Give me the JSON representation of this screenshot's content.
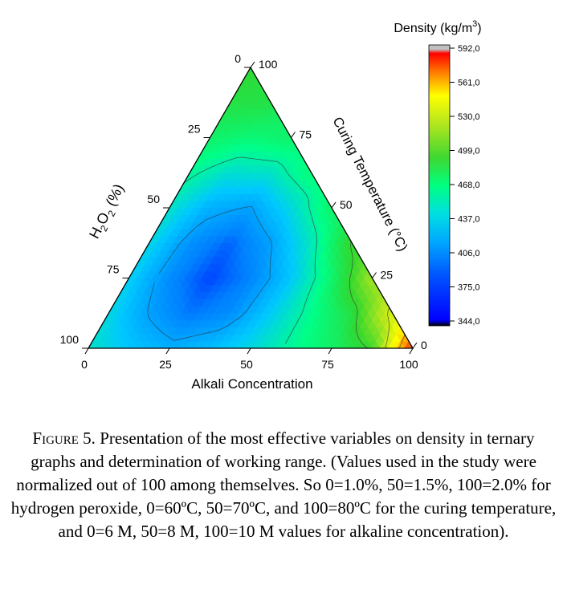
{
  "chart_data": {
    "type": "heatmap",
    "subtype": "ternary-contour",
    "axes": {
      "bottom": {
        "label": "Alkali Concentration",
        "ticks": [
          "0",
          "25",
          "50",
          "75",
          "100"
        ]
      },
      "left": {
        "label_main": "H",
        "label_sub1": "2",
        "label_mid": "O",
        "label_sub2": "2",
        "label_tail": " (%)",
        "ticks": [
          "0",
          "25",
          "50",
          "75",
          "100"
        ]
      },
      "right": {
        "label": "Curing Temperature (°C)",
        "ticks": [
          "0",
          "25",
          "50",
          "75",
          "100"
        ]
      }
    },
    "colorbar": {
      "title": "Density (kg/m",
      "title_sup": "3",
      "title_tail": ")",
      "range": [
        344.0,
        592.0
      ],
      "ticks": [
        "344,0",
        "375,0",
        "406,0",
        "437,0",
        "468,0",
        "499,0",
        "530,0",
        "561,0",
        "592,0"
      ],
      "colors": [
        "#000000",
        "#0000ff",
        "#0080ff",
        "#00c8ff",
        "#00ff88",
        "#30d830",
        "#b4e61e",
        "#ffff00",
        "#ff8000",
        "#ff0000",
        "#c0c0c0"
      ]
    },
    "density_grid": {
      "note_levels": "rows indexed by Alkali Concentration 0..100 step 12.5, cols by Curing Temperature 0..100 step 12.5; value = density kg/m3",
      "step": 12.5,
      "values": [
        [
          430,
          425,
          422,
          425,
          430,
          440,
          452,
          462,
          468
        ],
        [
          418,
          405,
          398,
          400,
          410,
          428,
          448,
          462,
          null
        ],
        [
          410,
          392,
          382,
          388,
          405,
          430,
          452,
          null,
          null
        ],
        [
          415,
          398,
          395,
          405,
          425,
          448,
          null,
          null,
          null
        ],
        [
          425,
          420,
          418,
          432,
          452,
          null,
          null,
          null,
          null
        ],
        [
          440,
          442,
          450,
          470,
          null,
          null,
          null,
          null,
          null
        ],
        [
          452,
          462,
          490,
          null,
          null,
          null,
          null,
          null,
          null
        ],
        [
          470,
          505,
          null,
          null,
          null,
          null,
          null,
          null,
          null
        ],
        [
          560,
          null,
          null,
          null,
          null,
          null,
          null,
          null,
          null
        ]
      ]
    }
  },
  "caption": {
    "label": "Figure 5.",
    "text": "Presentation of the most effective variables on density in ternary graphs and determination of working range. (Values used in the study were normalized out of 100 among themselves. So 0=1.0%, 50=1.5%, 100=2.0% for hydrogen peroxide, 0=60ºC, 50=70ºC, and 100=80ºC for the curing temperature, and 0=6 M, 50=8 M, 100=10 M values for alkaline concentration)."
  }
}
